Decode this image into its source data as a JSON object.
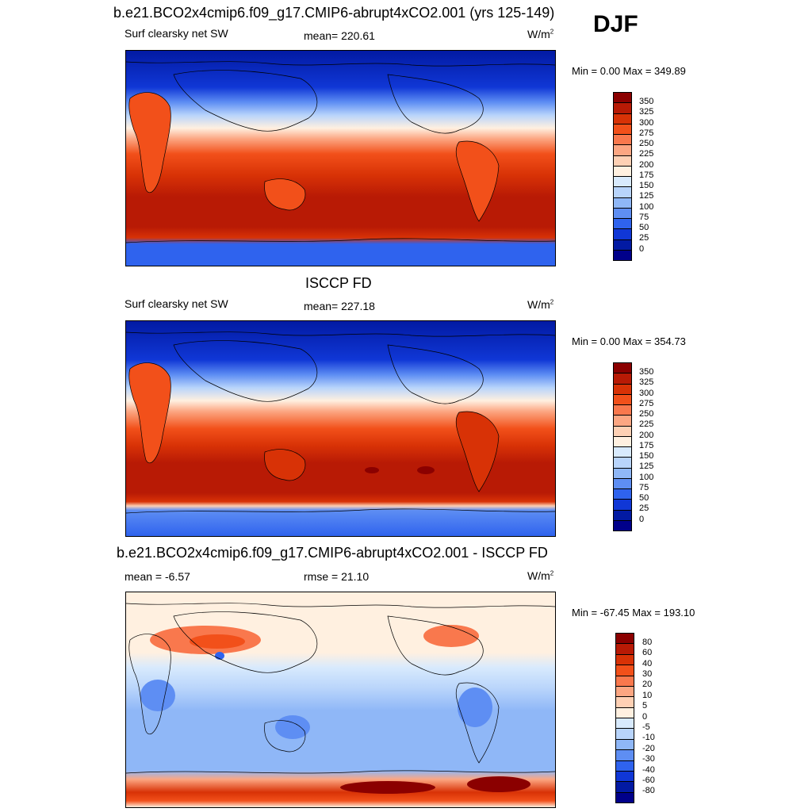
{
  "season": "DJF",
  "panels": [
    {
      "title": "b.e21.BCO2x4cmip6.f09_g17.CMIP6-abrupt4xCO2.001 (yrs 125-149)",
      "left_label": "Surf clearsky net SW",
      "center_label": "mean= 220.61",
      "units_base": "W/m",
      "units_exp": "2",
      "minmax": "Min =   0.00 Max = 349.89",
      "colorbar_ticks": [
        "350",
        "325",
        "300",
        "275",
        "250",
        "225",
        "200",
        "175",
        "150",
        "125",
        "100",
        "75",
        "50",
        "25",
        "0"
      ],
      "colorbar_colors": [
        "#8b0000",
        "#b81a05",
        "#d83206",
        "#f2501a",
        "#f9784d",
        "#fca682",
        "#fed0b4",
        "#fff0e0",
        "#d8eafd",
        "#b8d4fb",
        "#8fb7f7",
        "#5e8ef3",
        "#2f63ee",
        "#1037d6",
        "#021aa3",
        "#00008a"
      ]
    },
    {
      "title": "ISCCP FD",
      "left_label": "Surf clearsky net SW",
      "center_label": "mean= 227.18",
      "units_base": "W/m",
      "units_exp": "2",
      "minmax": "Min =   0.00 Max = 354.73",
      "colorbar_ticks": [
        "350",
        "325",
        "300",
        "275",
        "250",
        "225",
        "200",
        "175",
        "150",
        "125",
        "100",
        "75",
        "50",
        "25",
        "0"
      ],
      "colorbar_colors": [
        "#8b0000",
        "#b81a05",
        "#d83206",
        "#f2501a",
        "#f9784d",
        "#fca682",
        "#fed0b4",
        "#fff0e0",
        "#d8eafd",
        "#b8d4fb",
        "#8fb7f7",
        "#5e8ef3",
        "#2f63ee",
        "#1037d6",
        "#021aa3",
        "#00008a"
      ]
    },
    {
      "title": "b.e21.BCO2x4cmip6.f09_g17.CMIP6-abrupt4xCO2.001 - ISCCP FD",
      "left_label": "mean =  -6.57",
      "center_label": "rmse =  21.10",
      "units_base": "W/m",
      "units_exp": "2",
      "minmax": "Min = -67.45 Max = 193.10",
      "colorbar_ticks": [
        "80",
        "60",
        "40",
        "30",
        "20",
        "10",
        "5",
        "0",
        "-5",
        "-10",
        "-20",
        "-30",
        "-40",
        "-60",
        "-80"
      ],
      "colorbar_colors": [
        "#8b0000",
        "#b81a05",
        "#d83206",
        "#f2501a",
        "#f9784d",
        "#fca682",
        "#fed0b4",
        "#fff0e0",
        "#d8eafd",
        "#b8d4fb",
        "#8fb7f7",
        "#5e8ef3",
        "#2f63ee",
        "#1037d6",
        "#021aa3",
        "#00008a"
      ]
    }
  ]
}
